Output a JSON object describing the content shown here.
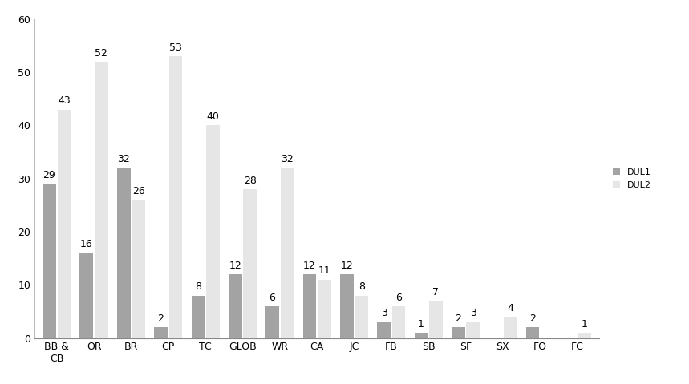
{
  "chart_data": {
    "type": "bar",
    "categories": [
      "BB & CB",
      "OR",
      "BR",
      "CP",
      "TC",
      "GLOB",
      "WR",
      "CA",
      "JC",
      "FB",
      "SB",
      "SF",
      "SX",
      "FO",
      "FC"
    ],
    "series": [
      {
        "name": "DUL1",
        "color": "#a3a3a3",
        "values": [
          29,
          16,
          32,
          2,
          8,
          12,
          6,
          12,
          12,
          3,
          1,
          2,
          null,
          2,
          null
        ]
      },
      {
        "name": "DUL2",
        "color": "#e6e6e6",
        "values": [
          43,
          52,
          26,
          53,
          40,
          28,
          32,
          11,
          8,
          6,
          7,
          3,
          4,
          null,
          1
        ]
      }
    ],
    "ylim": [
      0,
      60
    ],
    "yticks": [
      0,
      10,
      20,
      30,
      40,
      50,
      60
    ],
    "grid": false,
    "legend": "right",
    "data_labels": true
  }
}
